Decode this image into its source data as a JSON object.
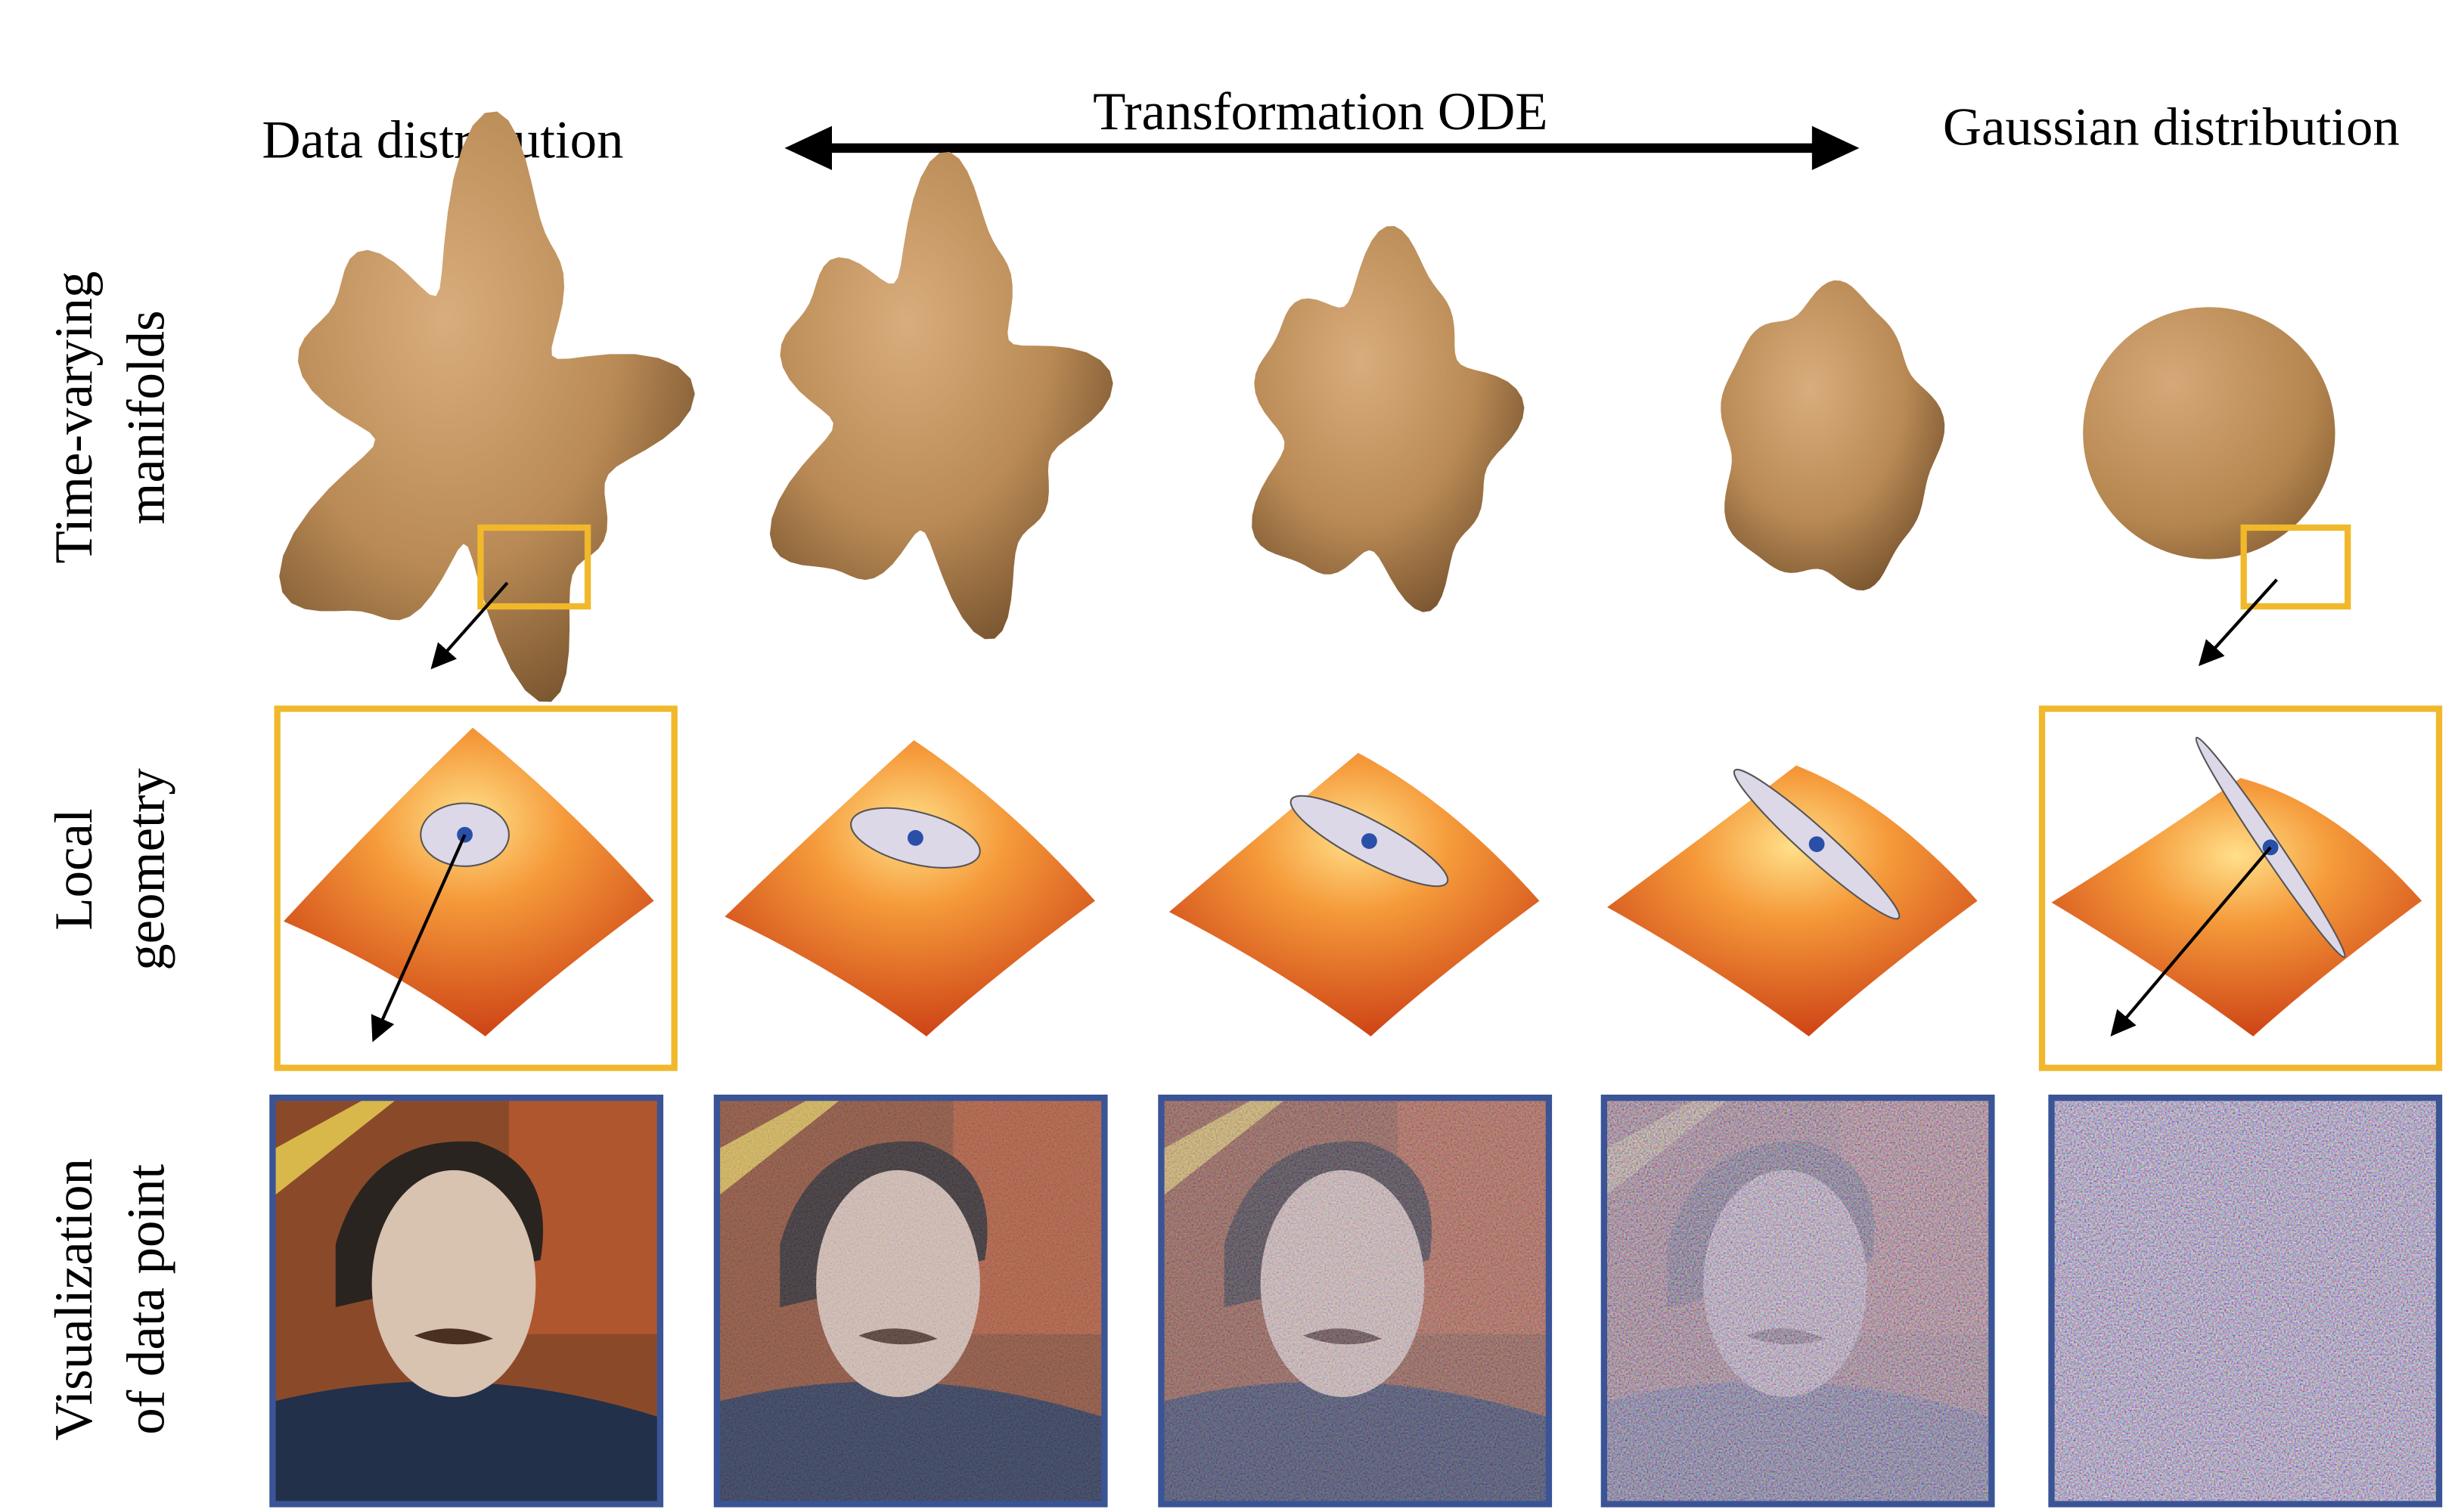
{
  "headers": {
    "left": "Data distribution",
    "middle": "Transformation ODE",
    "right": "Gaussian distribution"
  },
  "rows": [
    {
      "label_lines": [
        "Time-varying",
        "manifolds"
      ]
    },
    {
      "label_lines": [
        "Local",
        "geometry"
      ]
    },
    {
      "label_lines": [
        "Visualization",
        "of data point"
      ]
    }
  ]
}
